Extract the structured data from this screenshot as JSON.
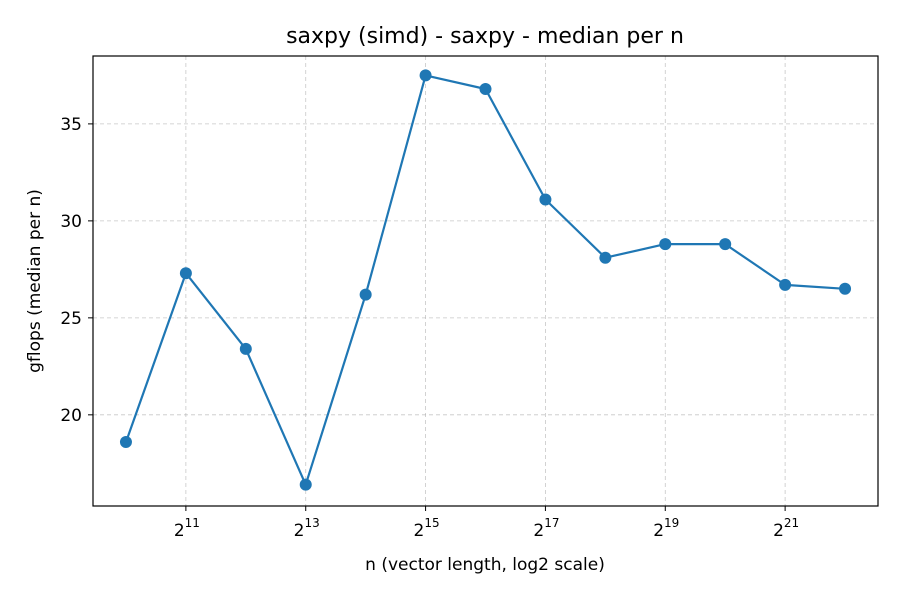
{
  "chart_data": {
    "type": "line",
    "title": "saxpy (simd) - saxpy - median per n",
    "xlabel": "n (vector length, log2 scale)",
    "ylabel": "gflops (median per n)",
    "x_scale": "log2",
    "x_base": "2",
    "xlim_exponent": [
      9.45,
      22.55
    ],
    "ylim": [
      15.3,
      38.5
    ],
    "x_ticks": [
      {
        "base": "2",
        "exp": "11",
        "value": 2048
      },
      {
        "base": "2",
        "exp": "13",
        "value": 8192
      },
      {
        "base": "2",
        "exp": "15",
        "value": 32768
      },
      {
        "base": "2",
        "exp": "17",
        "value": 131072
      },
      {
        "base": "2",
        "exp": "19",
        "value": 524288
      },
      {
        "base": "2",
        "exp": "21",
        "value": 2097152
      }
    ],
    "y_ticks": [
      20,
      25,
      30,
      35
    ],
    "y_tick_labels": [
      "20",
      "25",
      "30",
      "35"
    ],
    "grid": true,
    "color": "#1f77b4",
    "series": [
      {
        "x": [
          1024,
          2048,
          4096,
          8192,
          16384,
          32768,
          65536,
          131072,
          262144,
          524288,
          1048576,
          2097152,
          4194304
        ],
        "values": [
          18.6,
          27.3,
          23.4,
          16.4,
          26.2,
          37.5,
          36.8,
          31.1,
          28.1,
          28.8,
          28.8,
          26.7,
          26.5
        ]
      }
    ]
  }
}
